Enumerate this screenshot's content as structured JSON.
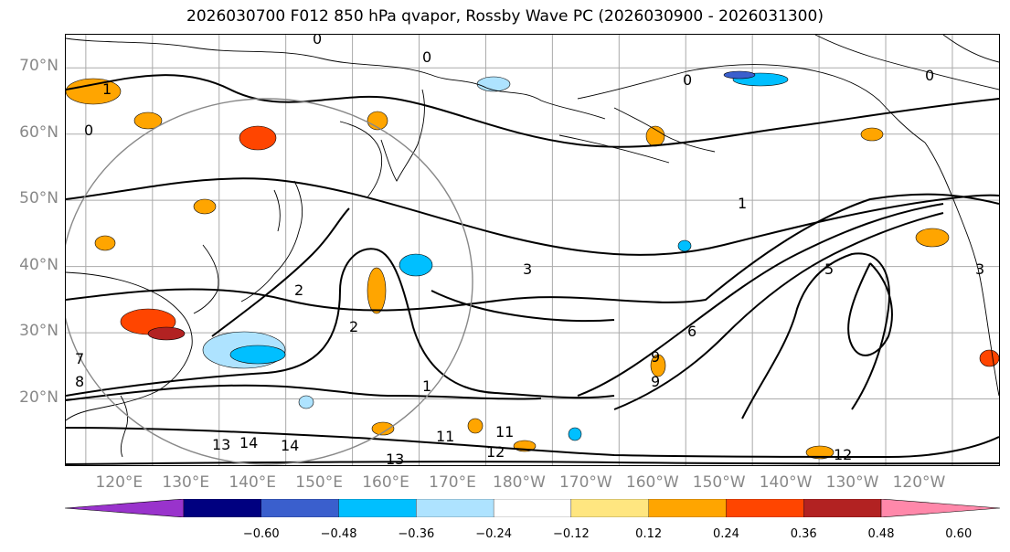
{
  "title": "2026030700 F012 850 hPa qvapor, Rossby Wave PC (2026030900 - 2026031300)",
  "lat_labels": [
    "70°N",
    "60°N",
    "50°N",
    "40°N",
    "30°N",
    "20°N"
  ],
  "lon_labels": [
    "120°E",
    "130°E",
    "140°E",
    "150°E",
    "160°E",
    "170°E",
    "180°W",
    "170°W",
    "160°W",
    "150°W",
    "140°W",
    "130°W",
    "120°W"
  ],
  "map": {
    "lat_range": [
      10,
      75
    ],
    "lon_range": [
      112,
      252
    ],
    "grid_lats": [
      20,
      30,
      40,
      50,
      60,
      70
    ],
    "grid_lons": [
      115,
      125,
      135,
      145,
      155,
      165,
      175,
      185,
      195,
      205,
      215,
      225,
      235,
      245
    ],
    "contour_labels": [
      "0",
      "0",
      "0",
      "0",
      "0",
      "1",
      "1",
      "1",
      "2",
      "2",
      "3",
      "3",
      "5",
      "6",
      "7",
      "8",
      "9",
      "9",
      "11",
      "11",
      "12",
      "12",
      "13",
      "13",
      "14",
      "14"
    ]
  },
  "colorbar": {
    "colors": [
      "#9933cc",
      "#000080",
      "#3a5fcd",
      "#00bfff",
      "#aee3ff",
      "#ffffff",
      "#ffe680",
      "#ffa500",
      "#ff4500",
      "#b22222",
      "#ff88aa"
    ],
    "ticks": [
      "−0.60",
      "−0.48",
      "−0.36",
      "−0.24",
      "−0.12",
      "0.12",
      "0.24",
      "0.36",
      "0.48",
      "0.60"
    ]
  },
  "colors": {
    "coast": "#000000",
    "grid": "#aaaaaa",
    "circle": "#888888",
    "label": "#888888"
  }
}
